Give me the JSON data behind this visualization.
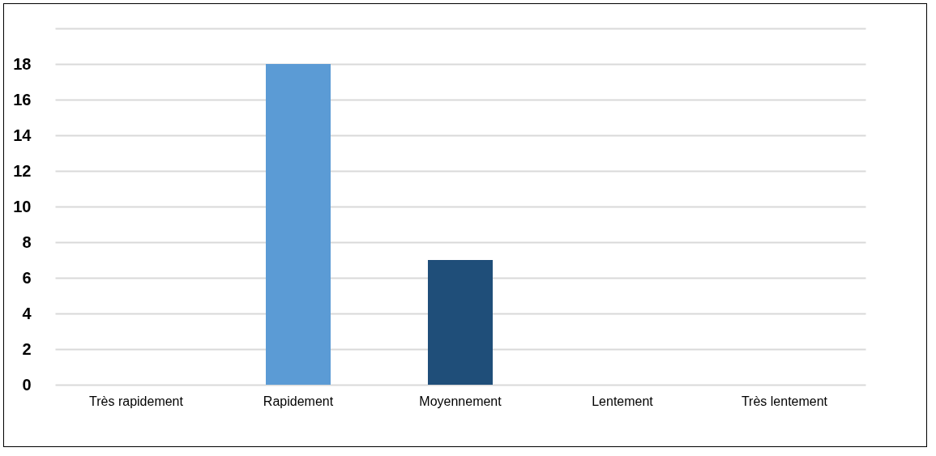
{
  "chart_data": {
    "type": "bar",
    "categories": [
      "Très rapidement",
      "Rapidement",
      "Moyennement",
      "Lentement",
      "Très lentement"
    ],
    "values": [
      0,
      18,
      7,
      0,
      0
    ],
    "colors": [
      "#4a78a8",
      "#5b9bd5",
      "#1f4e79",
      "#4a78a8",
      "#4a78a8"
    ],
    "ylim": [
      0,
      20
    ],
    "yticks": [
      0,
      2,
      4,
      6,
      8,
      10,
      12,
      14,
      16,
      18,
      {
        "value": 20,
        "label": null
      }
    ],
    "grid": "y"
  }
}
